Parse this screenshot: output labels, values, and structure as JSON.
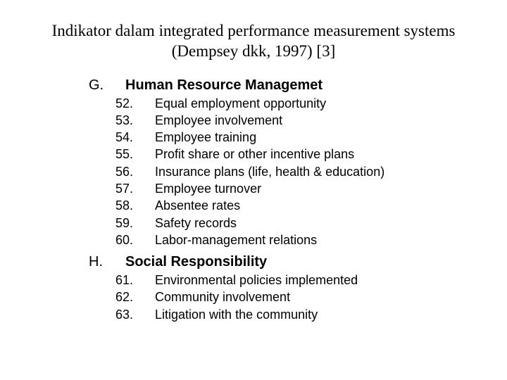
{
  "title_line1": "Indikator dalam integrated performance measurement systems",
  "title_line2": "(Dempsey dkk, 1997) [3]",
  "sections": [
    {
      "letter": "G.",
      "heading": "Human Resource Managemet",
      "items": [
        {
          "n": "52.",
          "t": "Equal employment opportunity"
        },
        {
          "n": "53.",
          "t": "Employee involvement"
        },
        {
          "n": "54.",
          "t": "Employee training"
        },
        {
          "n": "55.",
          "t": "Profit share or other incentive plans"
        },
        {
          "n": "56.",
          "t": "Insurance plans (life, health & education)"
        },
        {
          "n": "57.",
          "t": "Employee turnover"
        },
        {
          "n": "58.",
          "t": "Absentee rates"
        },
        {
          "n": "59.",
          "t": "Safety records"
        },
        {
          "n": "60.",
          "t": "Labor-management relations"
        }
      ]
    },
    {
      "letter": "H.",
      "heading": "Social Responsibility",
      "items": [
        {
          "n": "61.",
          "t": "Environmental policies implemented"
        },
        {
          "n": "62.",
          "t": "Community involvement"
        },
        {
          "n": "63.",
          "t": "Litigation with the community"
        }
      ]
    }
  ]
}
